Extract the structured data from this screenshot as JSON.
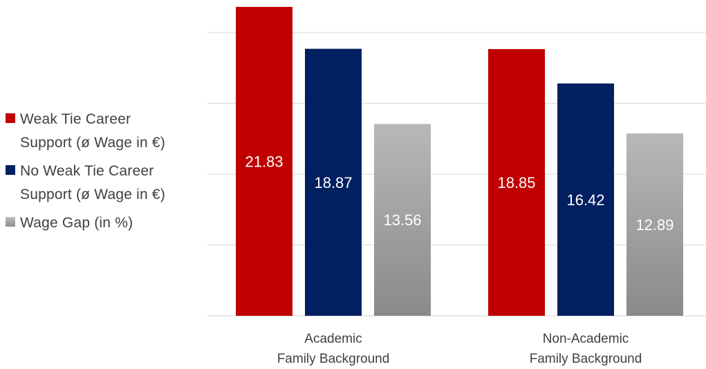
{
  "chart_data": {
    "type": "bar",
    "categories": [
      [
        "Academic",
        "Family Background"
      ],
      [
        "Non-Academic",
        "Family Background"
      ]
    ],
    "series": [
      {
        "name": "Weak Tie Career Support (ø Wage in €)",
        "values": [
          21.83,
          18.85
        ],
        "color": "#c00000"
      },
      {
        "name": "No Weak Tie Career Support (ø Wage in €)",
        "values": [
          18.87,
          16.42
        ],
        "color": "#002060"
      },
      {
        "name": "Wage Gap (in %)",
        "values": [
          13.56,
          12.89
        ],
        "color": "#a6a6a6"
      }
    ],
    "value_labels": [
      [
        "21.83",
        "18.85"
      ],
      [
        "18.87",
        "16.42"
      ],
      [
        "13.56",
        "12.89"
      ]
    ],
    "ylim": [
      0,
      22
    ],
    "grid": true,
    "legend_position": "left"
  },
  "legend": [
    {
      "lines": [
        "Weak Tie Career",
        "Support (ø Wage in €)"
      ],
      "color": "#c00000"
    },
    {
      "lines": [
        "No Weak Tie Career",
        "Support (ø Wage in €)"
      ],
      "color": "#002060"
    },
    {
      "lines": [
        "Wage Gap (in %)"
      ],
      "color": "#a6a6a6"
    }
  ]
}
